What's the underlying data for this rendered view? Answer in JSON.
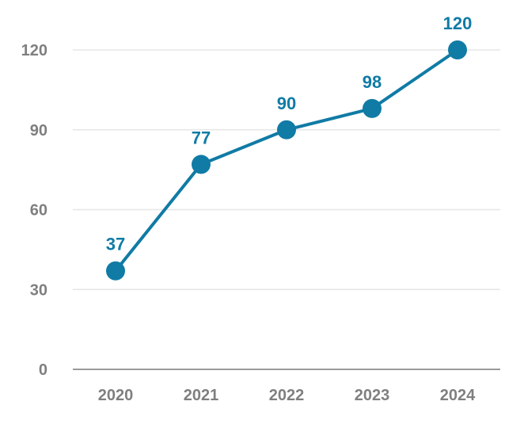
{
  "chart_data": {
    "type": "line",
    "title": "",
    "xlabel": "",
    "ylabel": "",
    "categories": [
      "2020",
      "2021",
      "2022",
      "2023",
      "2024"
    ],
    "series": [
      {
        "values": [
          37,
          77,
          90,
          98,
          120
        ],
        "color": "#107ba5"
      }
    ],
    "data_labels": [
      "37",
      "77",
      "90",
      "98",
      "120"
    ],
    "ylim": [
      0,
      120
    ],
    "yticks": [
      0,
      30,
      60,
      90,
      120
    ],
    "ytick_labels": [
      "0",
      "30",
      "60",
      "90",
      "120"
    ],
    "grid": true,
    "legend": "none"
  },
  "colors": {
    "series": "#107ba5",
    "tick_text": "#7f7f7f",
    "grid": "#e6e6e6",
    "axis": "#9a9a9a"
  }
}
